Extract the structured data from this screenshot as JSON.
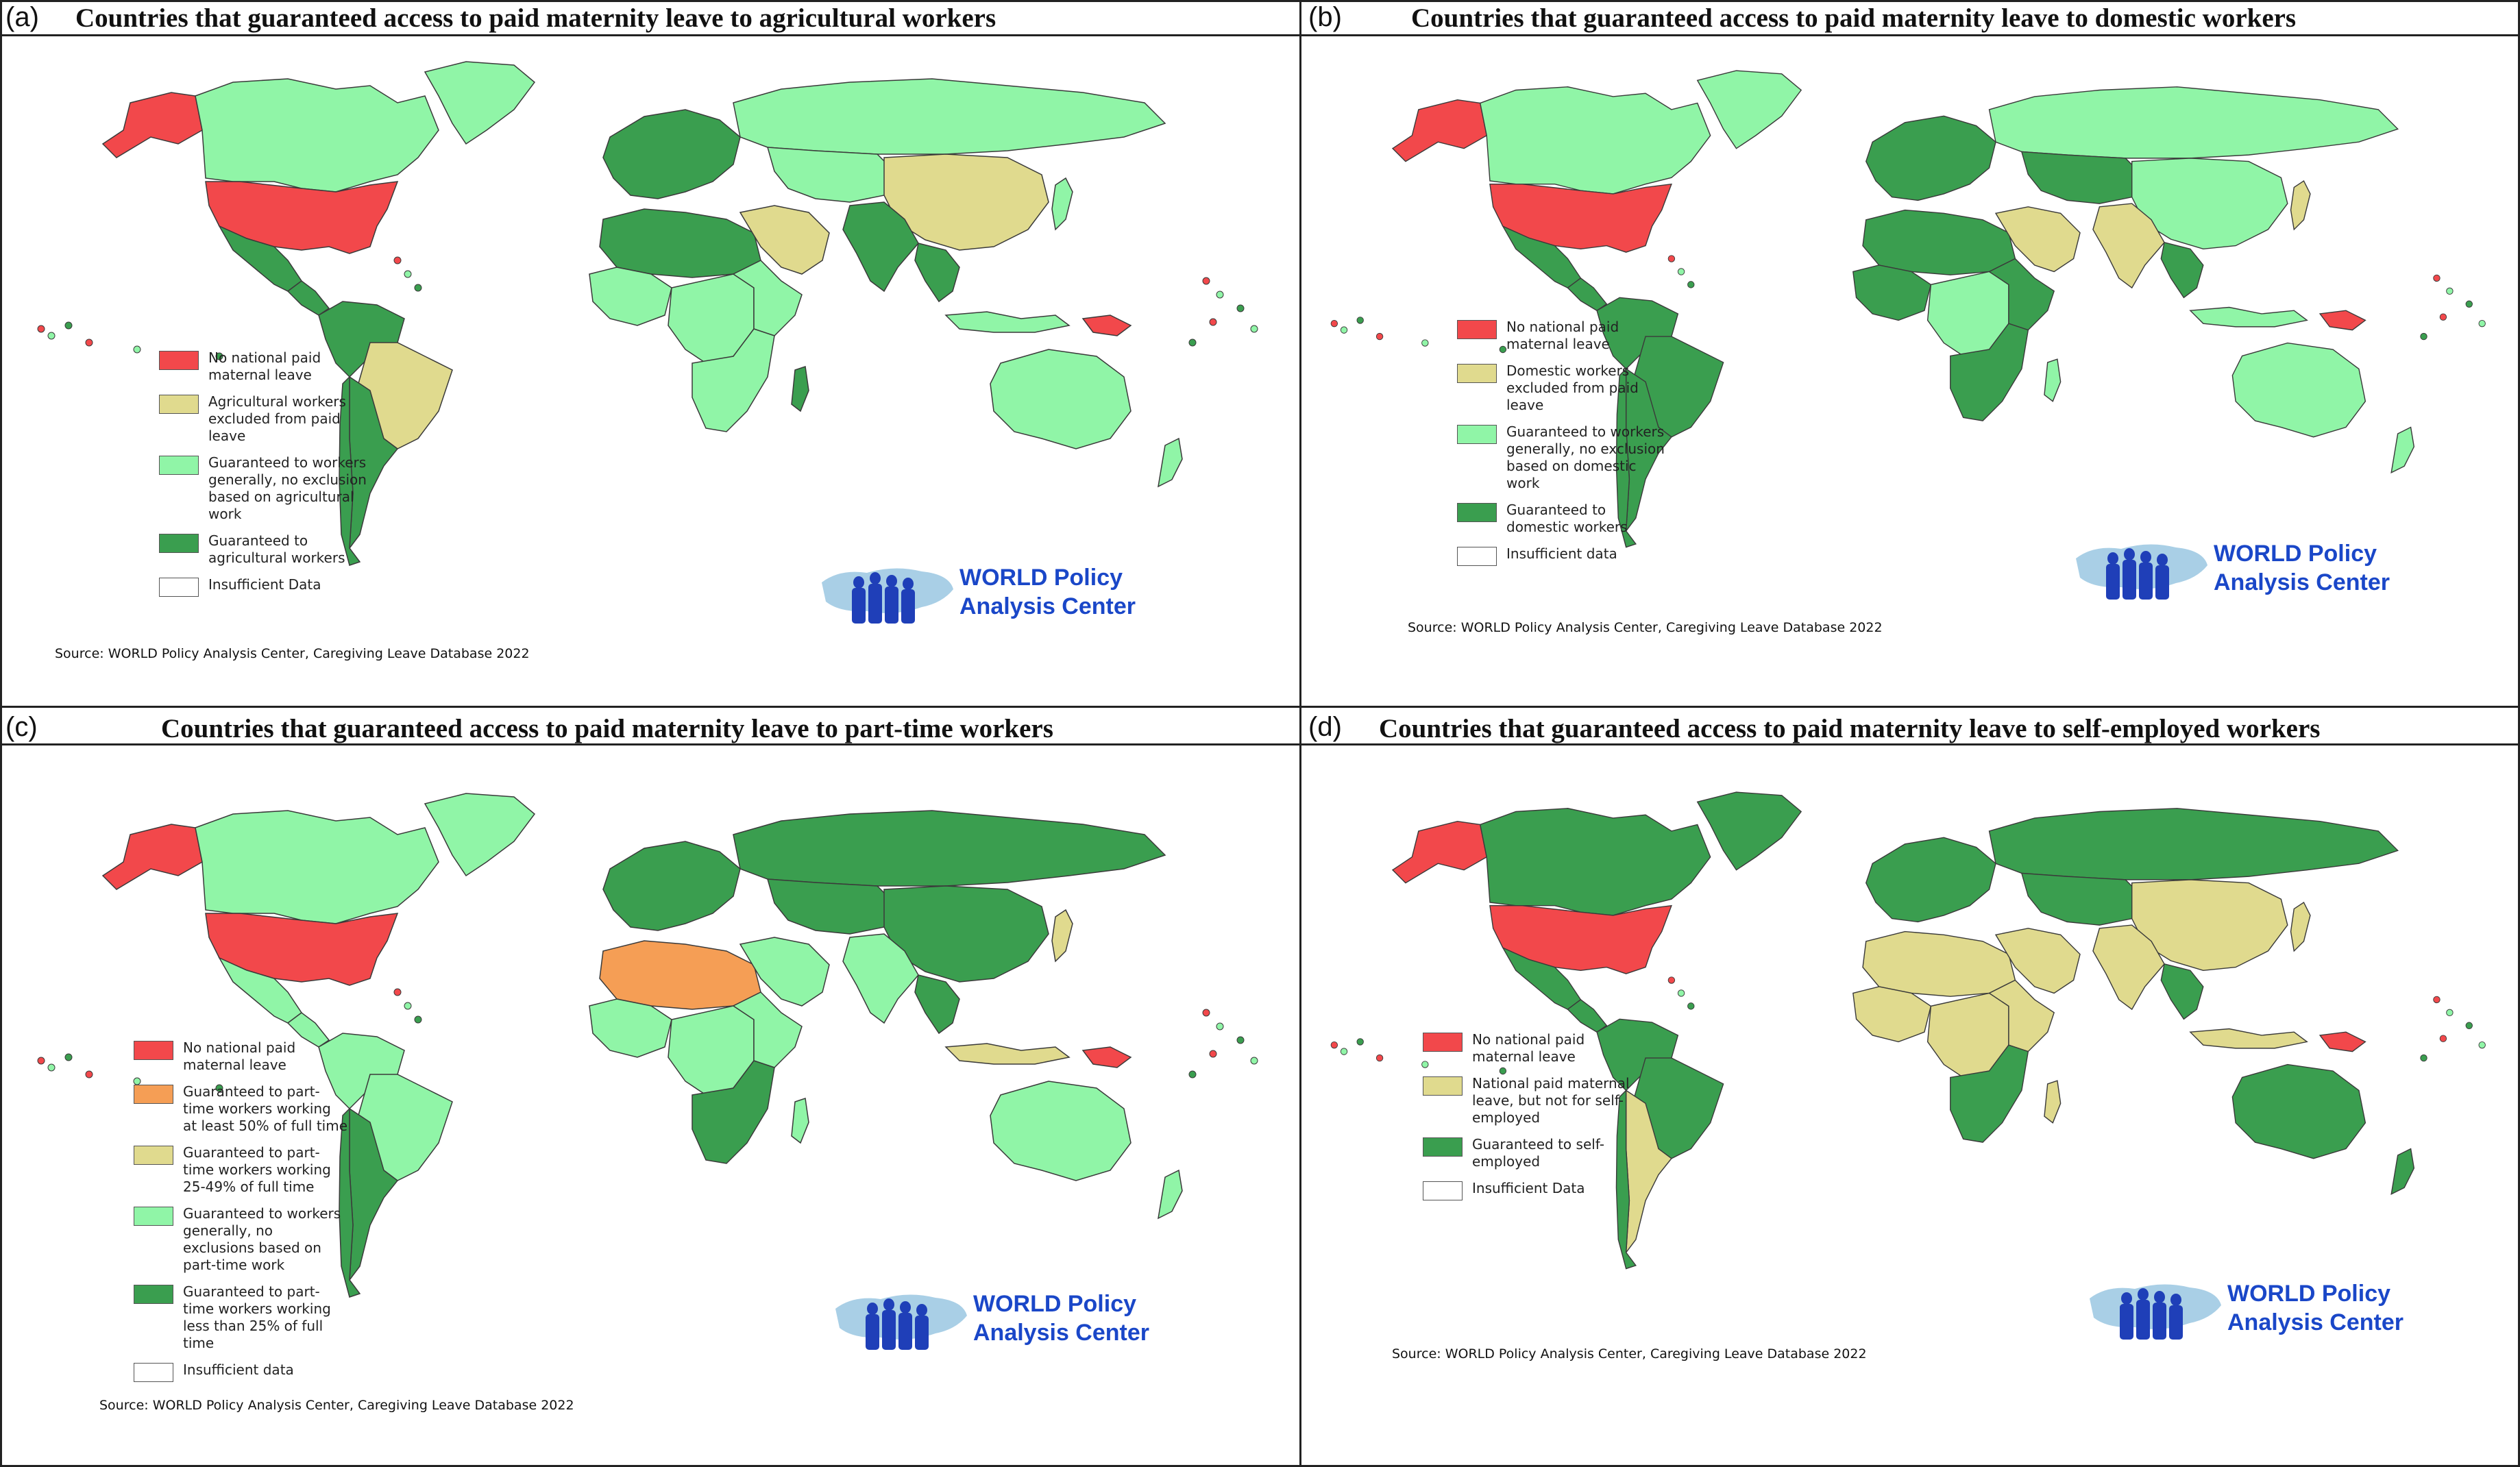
{
  "colors": {
    "red": "#f2484b",
    "orange": "#f59e55",
    "yellow": "#e0da8e",
    "light_green": "#90f5a7",
    "dark_green": "#3a9e4f",
    "white": "#ffffff",
    "border": "#3a3a3a",
    "logo_blue": "#1a47c8"
  },
  "source": "Source: WORLD Policy Analysis Center, Caregiving Leave Database 2022",
  "logo": {
    "line1": "WORLD Policy",
    "line2": "Analysis Center"
  },
  "panels": {
    "a": {
      "label": "(a)",
      "title": "Countries that guaranteed access to paid maternity leave to agricultural workers",
      "legend": [
        {
          "color": "#f2484b",
          "text": "No national paid maternal leave"
        },
        {
          "color": "#e0da8e",
          "text": "Agricultural workers excluded from paid leave"
        },
        {
          "color": "#90f5a7",
          "text": "Guaranteed to workers generally, no exclusion based on agricultural work"
        },
        {
          "color": "#3a9e4f",
          "text": "Guaranteed to agricultural workers"
        },
        {
          "color": "#ffffff",
          "text": "Insufficient Data"
        }
      ]
    },
    "b": {
      "label": "(b)",
      "title": "Countries that guaranteed access to paid maternity leave to domestic workers",
      "legend": [
        {
          "color": "#f2484b",
          "text": "No national paid maternal leave"
        },
        {
          "color": "#e0da8e",
          "text": "Domestic workers excluded from paid leave"
        },
        {
          "color": "#90f5a7",
          "text": "Guaranteed to workers generally, no exclusion based on domestic work"
        },
        {
          "color": "#3a9e4f",
          "text": "Guaranteed to domestic workers"
        },
        {
          "color": "#ffffff",
          "text": "Insufficient data"
        }
      ]
    },
    "c": {
      "label": "(c)",
      "title": "Countries that guaranteed access to paid maternity leave to part-time workers",
      "legend": [
        {
          "color": "#f2484b",
          "text": "No national paid maternal leave"
        },
        {
          "color": "#f59e55",
          "text": "Guaranteed to part-time workers working at least 50% of full time"
        },
        {
          "color": "#e0da8e",
          "text": "Guaranteed to part-time workers working 25-49% of full time"
        },
        {
          "color": "#90f5a7",
          "text": "Guaranteed to workers generally, no exclusions based on part-time work"
        },
        {
          "color": "#3a9e4f",
          "text": "Guaranteed to part-time workers working less than 25% of full time"
        },
        {
          "color": "#ffffff",
          "text": "Insufficient data"
        }
      ]
    },
    "d": {
      "label": "(d)",
      "title": "Countries that guaranteed access to paid maternity leave to self-employed workers",
      "legend": [
        {
          "color": "#f2484b",
          "text": "No national paid maternal leave"
        },
        {
          "color": "#e0da8e",
          "text": "National paid maternal leave, but not for self-employed"
        },
        {
          "color": "#3a9e4f",
          "text": "Guaranteed to self-employed"
        },
        {
          "color": "#ffffff",
          "text": "Insufficient Data"
        }
      ]
    }
  },
  "maps": {
    "a": {
      "canada": "#90f5a7",
      "alaska": "#f2484b",
      "greenland": "#90f5a7",
      "usa": "#f2484b",
      "mexico": "#3a9e4f",
      "centralam": "#3a9e4f",
      "southam_n": "#3a9e4f",
      "brazil": "#e0da8e",
      "southam_s": "#3a9e4f",
      "chile": "#3a9e4f",
      "europe": "#3a9e4f",
      "nafrica": "#3a9e4f",
      "westafrica": "#90f5a7",
      "centralafrica": "#90f5a7",
      "eastafrica": "#90f5a7",
      "southafrica": "#90f5a7",
      "madagascar": "#3a9e4f",
      "mideast": "#e0da8e",
      "russia": "#90f5a7",
      "centralasia": "#90f5a7",
      "china": "#e0da8e",
      "india": "#3a9e4f",
      "seasia": "#3a9e4f",
      "indonesia": "#90f5a7",
      "png": "#f2484b",
      "australia": "#90f5a7",
      "nz": "#90f5a7",
      "japan": "#90f5a7"
    },
    "b": {
      "canada": "#90f5a7",
      "alaska": "#f2484b",
      "greenland": "#90f5a7",
      "usa": "#f2484b",
      "mexico": "#3a9e4f",
      "centralam": "#3a9e4f",
      "southam_n": "#3a9e4f",
      "brazil": "#3a9e4f",
      "southam_s": "#3a9e4f",
      "chile": "#3a9e4f",
      "europe": "#3a9e4f",
      "nafrica": "#3a9e4f",
      "westafrica": "#3a9e4f",
      "centralafrica": "#90f5a7",
      "eastafrica": "#3a9e4f",
      "southafrica": "#3a9e4f",
      "madagascar": "#90f5a7",
      "mideast": "#e0da8e",
      "russia": "#90f5a7",
      "centralasia": "#3a9e4f",
      "china": "#90f5a7",
      "india": "#e0da8e",
      "seasia": "#3a9e4f",
      "indonesia": "#90f5a7",
      "png": "#f2484b",
      "australia": "#90f5a7",
      "nz": "#90f5a7",
      "japan": "#e0da8e"
    },
    "c": {
      "canada": "#90f5a7",
      "alaska": "#f2484b",
      "greenland": "#90f5a7",
      "usa": "#f2484b",
      "mexico": "#90f5a7",
      "centralam": "#90f5a7",
      "southam_n": "#90f5a7",
      "brazil": "#90f5a7",
      "southam_s": "#3a9e4f",
      "chile": "#3a9e4f",
      "europe": "#3a9e4f",
      "nafrica": "#f59e55",
      "westafrica": "#90f5a7",
      "centralafrica": "#90f5a7",
      "eastafrica": "#90f5a7",
      "southafrica": "#3a9e4f",
      "madagascar": "#90f5a7",
      "mideast": "#90f5a7",
      "russia": "#3a9e4f",
      "centralasia": "#3a9e4f",
      "china": "#3a9e4f",
      "india": "#90f5a7",
      "seasia": "#3a9e4f",
      "indonesia": "#e0da8e",
      "png": "#f2484b",
      "australia": "#90f5a7",
      "nz": "#90f5a7",
      "japan": "#e0da8e"
    },
    "d": {
      "canada": "#3a9e4f",
      "alaska": "#f2484b",
      "greenland": "#3a9e4f",
      "usa": "#f2484b",
      "mexico": "#3a9e4f",
      "centralam": "#3a9e4f",
      "southam_n": "#3a9e4f",
      "brazil": "#3a9e4f",
      "southam_s": "#e0da8e",
      "chile": "#3a9e4f",
      "europe": "#3a9e4f",
      "nafrica": "#e0da8e",
      "westafrica": "#e0da8e",
      "centralafrica": "#e0da8e",
      "eastafrica": "#e0da8e",
      "southafrica": "#3a9e4f",
      "madagascar": "#e0da8e",
      "mideast": "#e0da8e",
      "russia": "#3a9e4f",
      "centralasia": "#3a9e4f",
      "china": "#e0da8e",
      "india": "#e0da8e",
      "seasia": "#3a9e4f",
      "indonesia": "#e0da8e",
      "png": "#f2484b",
      "australia": "#3a9e4f",
      "nz": "#3a9e4f",
      "japan": "#e0da8e"
    }
  }
}
